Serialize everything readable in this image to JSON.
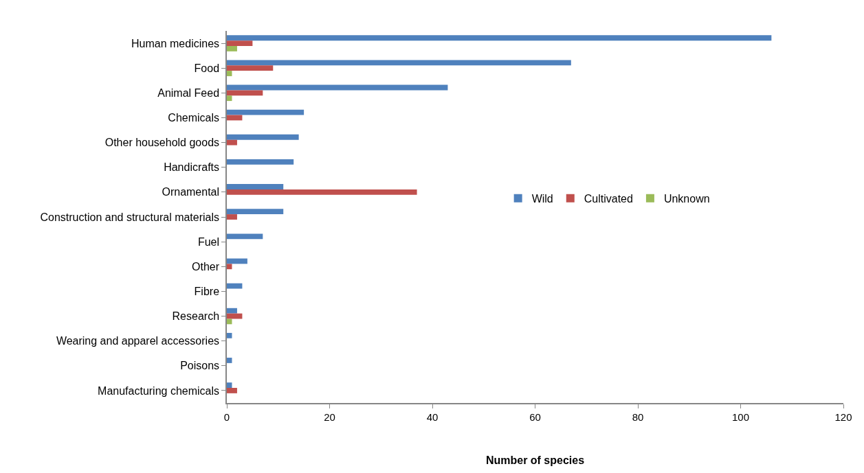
{
  "chart_data": {
    "type": "bar",
    "orientation": "horizontal",
    "xlabel": "Number of species",
    "categories": [
      "Human medicines",
      "Food",
      "Animal Feed",
      "Chemicals",
      "Other household goods",
      "Handicrafts",
      "Ornamental",
      "Construction and structural materials",
      "Fuel",
      "Other",
      "Fibre",
      "Research",
      "Wearing and apparel accessories",
      "Poisons",
      "Manufacturing chemicals"
    ],
    "series": [
      {
        "name": "Wild",
        "color": "#4f81bd",
        "values": [
          106,
          67,
          43,
          15,
          14,
          13,
          11,
          11,
          7,
          4,
          3,
          2,
          1,
          1,
          1
        ]
      },
      {
        "name": "Cultivated",
        "color": "#c0504d",
        "values": [
          5,
          9,
          7,
          3,
          2,
          0,
          37,
          2,
          0,
          1,
          0,
          3,
          0,
          0,
          2
        ]
      },
      {
        "name": "Unknown",
        "color": "#9bbb59",
        "values": [
          2,
          1,
          1,
          0,
          0,
          0,
          0,
          0,
          0,
          0,
          0,
          1,
          0,
          0,
          0
        ]
      }
    ],
    "xlim": [
      0,
      120
    ],
    "xticks": [
      0,
      20,
      40,
      60,
      80,
      100,
      120
    ],
    "grid": false,
    "legend": "right"
  }
}
